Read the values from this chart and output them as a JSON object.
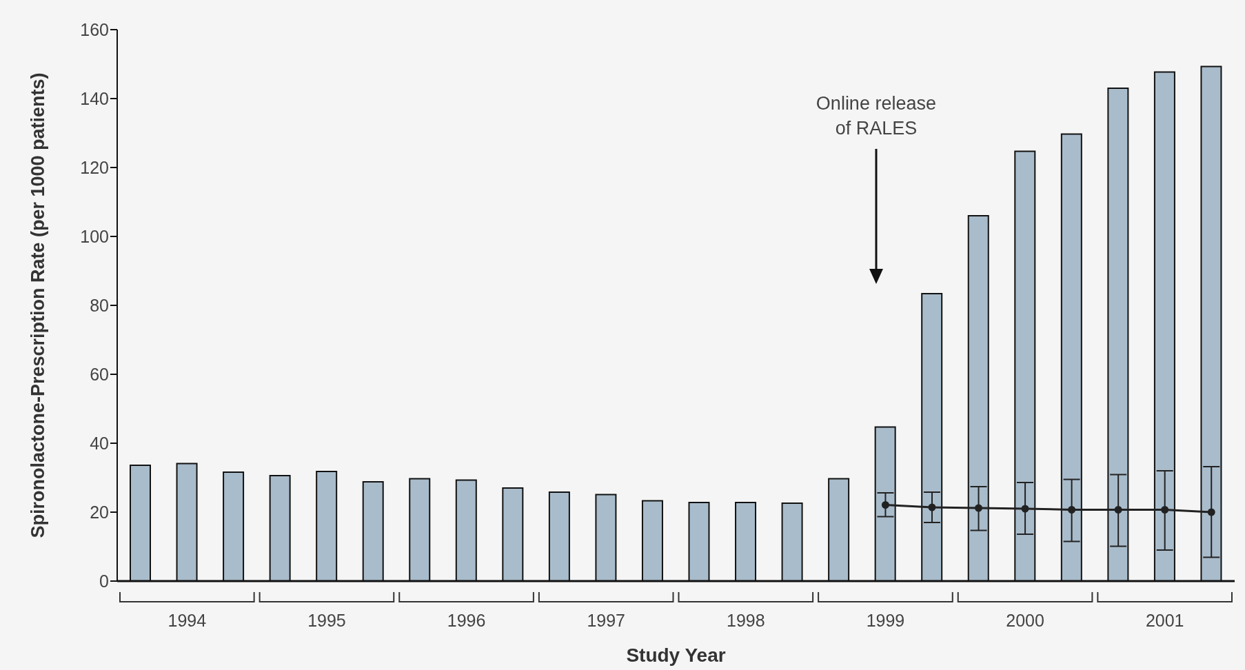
{
  "chart_data": {
    "type": "bar",
    "xlabel": "Study Year",
    "ylabel": "Spironolactone-Prescription Rate (per 1000 patients)",
    "categories": [
      null,
      "1994",
      null,
      null,
      "1995",
      null,
      null,
      "1996",
      null,
      null,
      "1997",
      null,
      null,
      "1998",
      null,
      null,
      "1999",
      null,
      null,
      "2000",
      null,
      null,
      "2001",
      null
    ],
    "series": [
      {
        "color": "#a9bccb",
        "values": [
          33.6,
          34.1,
          31.6,
          30.6,
          31.8,
          28.8,
          29.7,
          29.3,
          27,
          25.8,
          25.1,
          23.3,
          22.8,
          22.8,
          22.6,
          29.7,
          44.7,
          83.4,
          106,
          124.7,
          129.7,
          143,
          147.7,
          149.3
        ]
      },
      {
        "type": "line",
        "color": "#222222",
        "marker": "circle",
        "values": [
          null,
          null,
          null,
          null,
          null,
          null,
          null,
          null,
          null,
          null,
          null,
          null,
          null,
          null,
          null,
          null,
          22.1,
          21.4,
          21.2,
          21,
          20.7,
          20.7,
          20.7,
          20
        ],
        "errors": [
          null,
          null,
          null,
          null,
          null,
          null,
          null,
          null,
          null,
          null,
          null,
          null,
          null,
          null,
          null,
          null,
          [
            18.7,
            25.6
          ],
          [
            17,
            25.8
          ],
          [
            14.7,
            27.4
          ],
          [
            13.6,
            28.6
          ],
          [
            11.5,
            29.5
          ],
          [
            10.1,
            30.9
          ],
          [
            9,
            32
          ],
          [
            6.9,
            33.2
          ]
        ]
      }
    ],
    "ylim": [
      0,
      160
    ],
    "yticks": [
      0,
      20,
      40,
      60,
      80,
      100,
      120,
      140,
      160
    ],
    "annotations": [
      {
        "text": "Online release\nof RALES"
      }
    ]
  }
}
